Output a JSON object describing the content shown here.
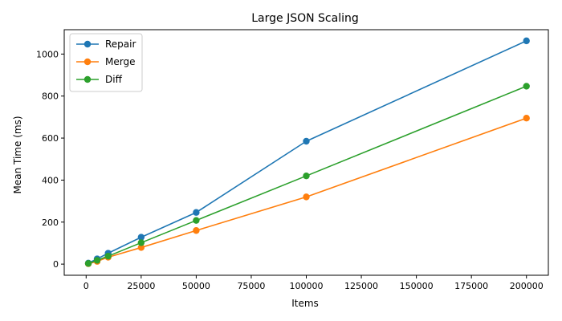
{
  "chart_data": {
    "type": "line",
    "title": "Large JSON Scaling",
    "xlabel": "Items",
    "ylabel": "Mean Time (ms)",
    "x": [
      1000,
      5000,
      10000,
      25000,
      50000,
      100000,
      200000
    ],
    "xlim": [
      -9950,
      209950
    ],
    "ylim": [
      -53,
      1116
    ],
    "xticks": [
      0,
      25000,
      50000,
      75000,
      100000,
      125000,
      150000,
      175000,
      200000
    ],
    "yticks": [
      0,
      200,
      400,
      600,
      800,
      1000
    ],
    "grid": false,
    "legend_position": "top-left",
    "series": [
      {
        "name": "Repair",
        "color": "#1f77b4",
        "values": [
          5,
          25,
          52,
          128,
          246,
          585,
          1063
        ]
      },
      {
        "name": "Merge",
        "color": "#ff7f0e",
        "values": [
          2,
          13,
          33,
          79,
          160,
          320,
          695
        ]
      },
      {
        "name": "Diff",
        "color": "#2ca02c",
        "values": [
          3,
          18,
          38,
          102,
          208,
          420,
          847
        ]
      }
    ]
  }
}
